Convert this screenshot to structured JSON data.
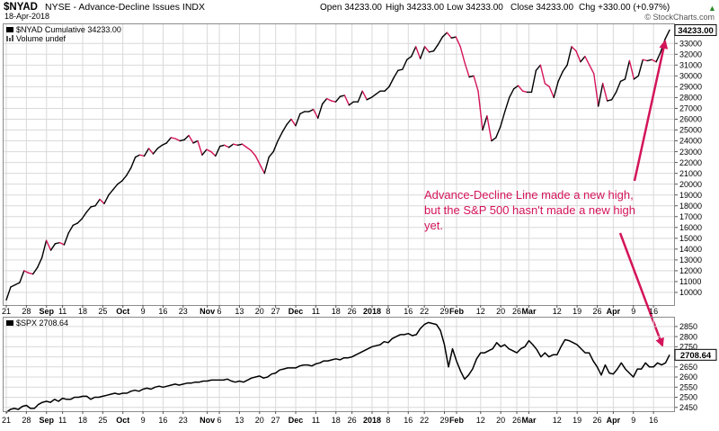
{
  "header": {
    "symbol": "$NYAD",
    "name": "NYSE - Advance-Decline Issues INDX",
    "date": "18-Apr-2018",
    "open": "Open 34233.00",
    "high": "High 34233.00",
    "low": "Low 34233.00",
    "close": "Close 34233.00",
    "chg": "Chg +330.00 (+0.97%)",
    "chg_arrow": "▲",
    "watermark": "© StockCharts.com"
  },
  "colors": {
    "up": "#000000",
    "down": "#d4145a",
    "annotation": "#d4145a",
    "grid": "#d9d9d9",
    "frame": "#8c8c8c"
  },
  "chart_data": [
    {
      "type": "line",
      "legend": "$NYAD Cumulative 34233.00",
      "legend2": "Volume undef",
      "last_value": "34233.00",
      "ylim": [
        9000,
        34600
      ],
      "yticks": [
        10000,
        11000,
        12000,
        13000,
        14000,
        15000,
        16000,
        17000,
        18000,
        19000,
        20000,
        21000,
        22000,
        23000,
        24000,
        25000,
        26000,
        27000,
        28000,
        29000,
        30000,
        31000,
        32000,
        33000
      ],
      "annotation": [
        "Advance-Decline Line made a new high,",
        "but the S&P 500 hasn't made a new high",
        "yet."
      ],
      "values": [
        9300,
        10500,
        10700,
        10900,
        12000,
        11800,
        11700,
        12300,
        13200,
        14800,
        13900,
        14500,
        14600,
        14400,
        15500,
        16200,
        16400,
        16800,
        17400,
        17900,
        18000,
        18600,
        18200,
        19000,
        19500,
        20000,
        20300,
        20800,
        21500,
        22500,
        22700,
        22600,
        23300,
        22800,
        23300,
        23600,
        23800,
        24300,
        24200,
        24000,
        24100,
        24500,
        23800,
        24000,
        22700,
        23200,
        23000,
        22600,
        23500,
        23600,
        23400,
        23700,
        23600,
        23700,
        23400,
        23100,
        22600,
        21800,
        21000,
        22500,
        23000,
        24000,
        24800,
        25500,
        26000,
        25400,
        26500,
        26700,
        26700,
        26900,
        26100,
        27400,
        27900,
        27700,
        27600,
        28100,
        28200,
        27300,
        27600,
        27600,
        28600,
        27800,
        28000,
        28300,
        28600,
        28600,
        29000,
        29800,
        30500,
        30600,
        31500,
        31800,
        32700,
        31600,
        32700,
        32200,
        32300,
        32900,
        33600,
        34000,
        33500,
        33600,
        32700,
        31200,
        29900,
        30000,
        28600,
        25000,
        26300,
        24000,
        24300,
        25300,
        26700,
        28000,
        28800,
        29100,
        28600,
        28500,
        28500,
        30500,
        31000,
        29300,
        29000,
        28000,
        29500,
        30400,
        31000,
        32700,
        32300,
        31300,
        31800,
        31000,
        30200,
        27200,
        29300,
        27700,
        27800,
        28500,
        29500,
        29700,
        31400,
        29700,
        30000,
        31500,
        31400,
        31500,
        31300,
        32200,
        33400,
        34233
      ]
    },
    {
      "type": "line",
      "legend": "$SPX 2708.64",
      "last_value": "2708.64",
      "ylim": [
        2440,
        2885
      ],
      "yticks": [
        2450,
        2500,
        2550,
        2600,
        2650,
        2700,
        2750,
        2800,
        2850
      ],
      "xlabels": [
        {
          "label": "21",
          "i": 0
        },
        {
          "label": "28",
          "i": 5
        },
        {
          "label": "Sep",
          "i": 10,
          "bold": true
        },
        {
          "label": "11",
          "i": 14
        },
        {
          "label": "18",
          "i": 19
        },
        {
          "label": "25",
          "i": 24
        },
        {
          "label": "Oct",
          "i": 29,
          "bold": true
        },
        {
          "label": "9",
          "i": 34
        },
        {
          "label": "16",
          "i": 39
        },
        {
          "label": "23",
          "i": 44
        },
        {
          "label": "Nov",
          "i": 50,
          "bold": true
        },
        {
          "label": "6",
          "i": 53
        },
        {
          "label": "13",
          "i": 58
        },
        {
          "label": "20",
          "i": 63
        },
        {
          "label": "27",
          "i": 67
        },
        {
          "label": "Dec",
          "i": 72,
          "bold": true
        },
        {
          "label": "11",
          "i": 77
        },
        {
          "label": "18",
          "i": 82
        },
        {
          "label": "26",
          "i": 86
        },
        {
          "label": "2018",
          "i": 91,
          "bold": true
        },
        {
          "label": "8",
          "i": 95
        },
        {
          "label": "16",
          "i": 100
        },
        {
          "label": "22",
          "i": 104
        },
        {
          "label": "29",
          "i": 109
        },
        {
          "label": "Feb",
          "i": 112,
          "bold": true
        },
        {
          "label": "12",
          "i": 118
        },
        {
          "label": "20",
          "i": 123
        },
        {
          "label": "26",
          "i": 127
        },
        {
          "label": "Mar",
          "i": 130,
          "bold": true
        },
        {
          "label": "12",
          "i": 137
        },
        {
          "label": "19",
          "i": 142
        },
        {
          "label": "26",
          "i": 147
        },
        {
          "label": "Apr",
          "i": 151,
          "bold": true
        },
        {
          "label": "9",
          "i": 156
        },
        {
          "label": "16",
          "i": 161
        }
      ],
      "values": [
        2425,
        2440,
        2445,
        2440,
        2455,
        2460,
        2445,
        2445,
        2465,
        2475,
        2480,
        2475,
        2490,
        2480,
        2495,
        2490,
        2490,
        2500,
        2500,
        2505,
        2505,
        2490,
        2500,
        2500,
        2505,
        2510,
        2515,
        2520,
        2515,
        2520,
        2520,
        2530,
        2535,
        2530,
        2540,
        2545,
        2540,
        2550,
        2555,
        2550,
        2555,
        2560,
        2565,
        2560,
        2565,
        2570,
        2570,
        2575,
        2575,
        2580,
        2580,
        2585,
        2585,
        2585,
        2585,
        2590,
        2580,
        2575,
        2580,
        2575,
        2585,
        2595,
        2600,
        2605,
        2595,
        2600,
        2615,
        2620,
        2635,
        2640,
        2645,
        2645,
        2645,
        2655,
        2660,
        2660,
        2655,
        2665,
        2670,
        2680,
        2680,
        2685,
        2690,
        2685,
        2695,
        2695,
        2700,
        2710,
        2720,
        2730,
        2740,
        2750,
        2755,
        2760,
        2775,
        2770,
        2790,
        2800,
        2810,
        2810,
        2815,
        2805,
        2810,
        2840,
        2860,
        2870,
        2865,
        2860,
        2830,
        2760,
        2650,
        2740,
        2680,
        2630,
        2590,
        2610,
        2640,
        2690,
        2720,
        2720,
        2730,
        2740,
        2770,
        2750,
        2760,
        2740,
        2730,
        2720,
        2740,
        2750,
        2780,
        2760,
        2735,
        2700,
        2720,
        2700,
        2710,
        2710,
        2750,
        2785,
        2780,
        2770,
        2760,
        2740,
        2720,
        2720,
        2680,
        2650,
        2610,
        2660,
        2620,
        2615,
        2640,
        2670,
        2640,
        2620,
        2600,
        2640,
        2640,
        2670,
        2650,
        2650,
        2670,
        2660,
        2670,
        2710
      ]
    }
  ]
}
